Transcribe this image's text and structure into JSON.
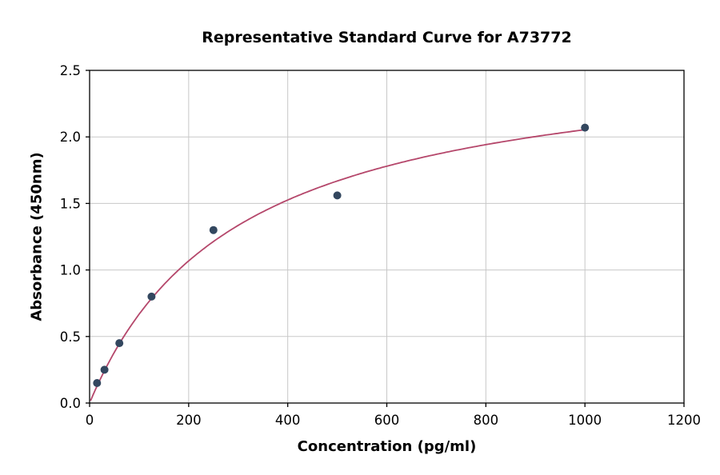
{
  "chart_data": {
    "type": "scatter",
    "title": "Representative Standard Curve for A73772",
    "xlabel": "Concentration (pg/ml)",
    "ylabel": "Absorbance (450nm)",
    "xlim": [
      0,
      1200
    ],
    "ylim": [
      0,
      2.5
    ],
    "xticks": [
      0,
      200,
      400,
      600,
      800,
      1000,
      1200
    ],
    "xtick_labels": [
      "0",
      "200",
      "400",
      "600",
      "800",
      "1000",
      "1200"
    ],
    "yticks": [
      0,
      0.5,
      1.0,
      1.5,
      2.0,
      2.5
    ],
    "ytick_labels": [
      "0.0",
      "0.5",
      "1.0",
      "1.5",
      "2.0",
      "2.5"
    ],
    "grid": true,
    "legend": "none",
    "points": {
      "x": [
        15,
        30,
        60,
        125,
        250,
        500,
        1000
      ],
      "y": [
        0.15,
        0.25,
        0.45,
        0.8,
        1.3,
        1.56,
        2.07
      ]
    },
    "fit_curve": {
      "model": "saturation y = vmax * x / (km + x)",
      "vmax": 2.67,
      "km": 300,
      "x_start": 2,
      "x_end": 1000
    },
    "colors": {
      "point": "#33475f",
      "curve": "#b5476b",
      "grid": "#c8c8c8",
      "axis": "#000000",
      "background": "#ffffff"
    }
  }
}
